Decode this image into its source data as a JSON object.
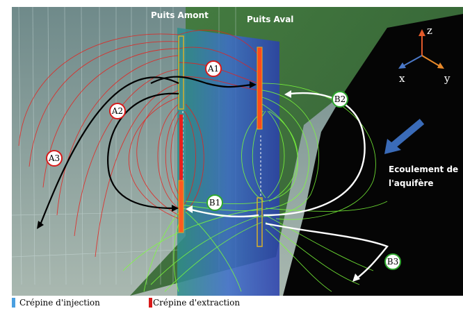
{
  "labels": {
    "well_upstream": "Puits Amont",
    "well_downstream": "Puits Aval",
    "flow_line1": "Ecoulement  de",
    "flow_line2": "l'aquifère"
  },
  "axes": {
    "z": "z",
    "x": "x",
    "y": "y"
  },
  "callouts": {
    "A1": "A1",
    "A2": "A2",
    "A3": "A3",
    "B1": "B1",
    "B2": "B2",
    "B3": "B3"
  },
  "legend": {
    "injection": {
      "label": "Crépine d'injection",
      "color": "#4a9fe0"
    },
    "extraction": {
      "label": "Crépine d'extraction",
      "color": "#d81a1a"
    }
  },
  "colors": {
    "red_flow": "#e8201c",
    "green_flow": "#7dff3a",
    "background": "#0a0a0a",
    "terrain": "#2f6b2a",
    "column_blue": "#3d74c9"
  }
}
